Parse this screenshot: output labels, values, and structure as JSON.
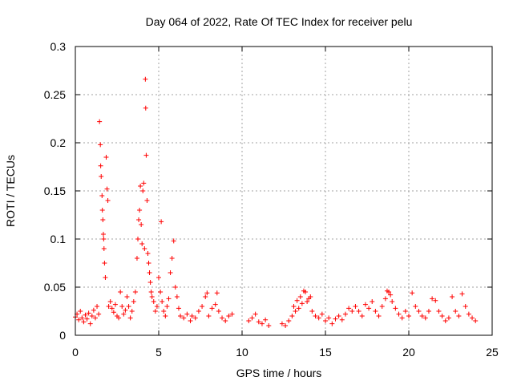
{
  "chart_data": {
    "type": "scatter",
    "title": "Day 064 of 2022, Rate Of TEC Index for receiver pelu",
    "xlabel": "GPS time / hours",
    "ylabel": "ROTI / TECUs",
    "xlim": [
      0,
      25
    ],
    "ylim": [
      0,
      0.3
    ],
    "xticks": [
      0,
      5,
      10,
      15,
      20,
      25
    ],
    "yticks": [
      0,
      0.05,
      0.1,
      0.15,
      0.2,
      0.25,
      0.3
    ],
    "xtick_labels": [
      "0",
      "5",
      "10",
      "15",
      "20",
      "25"
    ],
    "ytick_labels": [
      "0",
      "0.05",
      "0.1",
      "0.15",
      "0.2",
      "0.25",
      "0.3"
    ],
    "grid": true,
    "marker": "+",
    "color": "#ff0000",
    "series": [
      {
        "name": "ROTI",
        "points": [
          [
            0.0,
            0.019
          ],
          [
            0.1,
            0.022
          ],
          [
            0.2,
            0.016
          ],
          [
            0.3,
            0.025
          ],
          [
            0.4,
            0.018
          ],
          [
            0.5,
            0.014
          ],
          [
            0.6,
            0.021
          ],
          [
            0.7,
            0.017
          ],
          [
            0.8,
            0.023
          ],
          [
            0.9,
            0.012
          ],
          [
            1.0,
            0.02
          ],
          [
            1.1,
            0.026
          ],
          [
            1.2,
            0.018
          ],
          [
            1.3,
            0.03
          ],
          [
            1.4,
            0.022
          ],
          [
            1.45,
            0.222
          ],
          [
            1.5,
            0.198
          ],
          [
            1.52,
            0.176
          ],
          [
            1.55,
            0.165
          ],
          [
            1.6,
            0.145
          ],
          [
            1.62,
            0.13
          ],
          [
            1.65,
            0.12
          ],
          [
            1.68,
            0.105
          ],
          [
            1.7,
            0.1
          ],
          [
            1.72,
            0.09
          ],
          [
            1.75,
            0.075
          ],
          [
            1.8,
            0.06
          ],
          [
            1.85,
            0.185
          ],
          [
            1.9,
            0.152
          ],
          [
            1.95,
            0.14
          ],
          [
            2.0,
            0.03
          ],
          [
            2.1,
            0.035
          ],
          [
            2.2,
            0.028
          ],
          [
            2.3,
            0.024
          ],
          [
            2.4,
            0.032
          ],
          [
            2.5,
            0.02
          ],
          [
            2.6,
            0.018
          ],
          [
            2.7,
            0.045
          ],
          [
            2.8,
            0.03
          ],
          [
            2.9,
            0.022
          ],
          [
            3.0,
            0.026
          ],
          [
            3.1,
            0.04
          ],
          [
            3.2,
            0.03
          ],
          [
            3.3,
            0.018
          ],
          [
            3.4,
            0.025
          ],
          [
            3.5,
            0.035
          ],
          [
            3.6,
            0.045
          ],
          [
            3.7,
            0.08
          ],
          [
            3.75,
            0.1
          ],
          [
            3.8,
            0.12
          ],
          [
            3.85,
            0.13
          ],
          [
            3.9,
            0.155
          ],
          [
            3.95,
            0.115
          ],
          [
            4.0,
            0.095
          ],
          [
            4.05,
            0.15
          ],
          [
            4.1,
            0.158
          ],
          [
            4.15,
            0.09
          ],
          [
            4.2,
            0.266
          ],
          [
            4.22,
            0.236
          ],
          [
            4.25,
            0.187
          ],
          [
            4.3,
            0.14
          ],
          [
            4.35,
            0.085
          ],
          [
            4.4,
            0.075
          ],
          [
            4.45,
            0.065
          ],
          [
            4.5,
            0.055
          ],
          [
            4.55,
            0.045
          ],
          [
            4.6,
            0.04
          ],
          [
            4.7,
            0.035
          ],
          [
            4.8,
            0.025
          ],
          [
            4.9,
            0.03
          ],
          [
            5.0,
            0.06
          ],
          [
            5.1,
            0.045
          ],
          [
            5.15,
            0.118
          ],
          [
            5.2,
            0.035
          ],
          [
            5.3,
            0.025
          ],
          [
            5.4,
            0.02
          ],
          [
            5.5,
            0.03
          ],
          [
            5.6,
            0.038
          ],
          [
            5.7,
            0.065
          ],
          [
            5.8,
            0.08
          ],
          [
            5.9,
            0.098
          ],
          [
            6.0,
            0.05
          ],
          [
            6.1,
            0.04
          ],
          [
            6.2,
            0.028
          ],
          [
            6.3,
            0.02
          ],
          [
            6.5,
            0.018
          ],
          [
            6.7,
            0.022
          ],
          [
            6.9,
            0.015
          ],
          [
            7.0,
            0.02
          ],
          [
            7.2,
            0.018
          ],
          [
            7.4,
            0.025
          ],
          [
            7.6,
            0.03
          ],
          [
            7.8,
            0.04
          ],
          [
            7.9,
            0.044
          ],
          [
            8.0,
            0.02
          ],
          [
            8.2,
            0.028
          ],
          [
            8.4,
            0.032
          ],
          [
            8.5,
            0.044
          ],
          [
            8.6,
            0.025
          ],
          [
            8.8,
            0.018
          ],
          [
            9.0,
            0.015
          ],
          [
            9.2,
            0.02
          ],
          [
            9.4,
            0.022
          ],
          [
            10.4,
            0.015
          ],
          [
            10.6,
            0.018
          ],
          [
            10.8,
            0.022
          ],
          [
            11.0,
            0.014
          ],
          [
            11.2,
            0.012
          ],
          [
            11.4,
            0.016
          ],
          [
            11.6,
            0.01
          ],
          [
            12.4,
            0.012
          ],
          [
            12.6,
            0.01
          ],
          [
            12.8,
            0.015
          ],
          [
            13.0,
            0.02
          ],
          [
            13.1,
            0.03
          ],
          [
            13.2,
            0.025
          ],
          [
            13.3,
            0.036
          ],
          [
            13.4,
            0.028
          ],
          [
            13.5,
            0.04
          ],
          [
            13.6,
            0.033
          ],
          [
            13.7,
            0.046
          ],
          [
            13.8,
            0.045
          ],
          [
            13.9,
            0.035
          ],
          [
            14.0,
            0.038
          ],
          [
            14.1,
            0.04
          ],
          [
            14.2,
            0.025
          ],
          [
            14.4,
            0.02
          ],
          [
            14.6,
            0.018
          ],
          [
            14.8,
            0.022
          ],
          [
            15.0,
            0.015
          ],
          [
            15.2,
            0.018
          ],
          [
            15.4,
            0.012
          ],
          [
            15.6,
            0.017
          ],
          [
            15.8,
            0.02
          ],
          [
            16.0,
            0.016
          ],
          [
            16.2,
            0.022
          ],
          [
            16.4,
            0.028
          ],
          [
            16.6,
            0.025
          ],
          [
            16.8,
            0.03
          ],
          [
            17.0,
            0.025
          ],
          [
            17.2,
            0.02
          ],
          [
            17.4,
            0.032
          ],
          [
            17.6,
            0.028
          ],
          [
            17.8,
            0.035
          ],
          [
            18.0,
            0.025
          ],
          [
            18.2,
            0.02
          ],
          [
            18.4,
            0.03
          ],
          [
            18.6,
            0.038
          ],
          [
            18.7,
            0.046
          ],
          [
            18.8,
            0.045
          ],
          [
            18.9,
            0.042
          ],
          [
            19.0,
            0.035
          ],
          [
            19.2,
            0.028
          ],
          [
            19.4,
            0.022
          ],
          [
            19.6,
            0.018
          ],
          [
            19.8,
            0.025
          ],
          [
            20.0,
            0.02
          ],
          [
            20.2,
            0.044
          ],
          [
            20.4,
            0.03
          ],
          [
            20.6,
            0.025
          ],
          [
            20.8,
            0.02
          ],
          [
            21.0,
            0.018
          ],
          [
            21.2,
            0.025
          ],
          [
            21.4,
            0.038
          ],
          [
            21.6,
            0.036
          ],
          [
            21.8,
            0.025
          ],
          [
            22.0,
            0.02
          ],
          [
            22.2,
            0.015
          ],
          [
            22.4,
            0.018
          ],
          [
            22.6,
            0.04
          ],
          [
            22.8,
            0.025
          ],
          [
            23.0,
            0.02
          ],
          [
            23.2,
            0.043
          ],
          [
            23.4,
            0.03
          ],
          [
            23.6,
            0.022
          ],
          [
            23.8,
            0.018
          ],
          [
            24.0,
            0.015
          ]
        ]
      }
    ]
  }
}
